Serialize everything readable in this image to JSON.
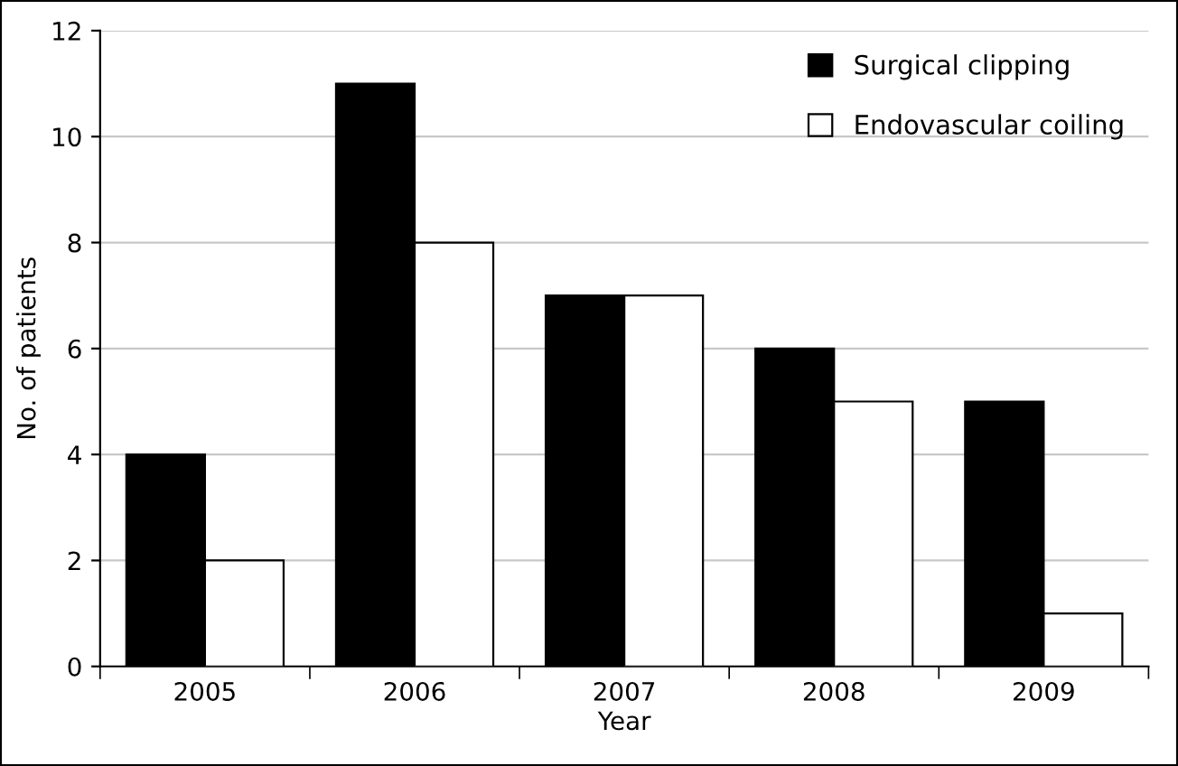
{
  "chart_data": {
    "type": "bar",
    "xlabel": "Year",
    "ylabel": "No. of patients",
    "categories": [
      "2005",
      "2006",
      "2007",
      "2008",
      "2009"
    ],
    "series": [
      {
        "name": "Surgical clipping",
        "color": "#000000",
        "values": [
          4,
          11,
          7,
          6,
          5
        ]
      },
      {
        "name": "Endovascular coiling",
        "color": "#ffffff",
        "values": [
          2,
          8,
          7,
          5,
          1
        ]
      }
    ],
    "ylim": [
      0,
      12
    ],
    "yticks": [
      0,
      2,
      4,
      6,
      8,
      10,
      12
    ],
    "grid": "y",
    "legend": "top right"
  }
}
